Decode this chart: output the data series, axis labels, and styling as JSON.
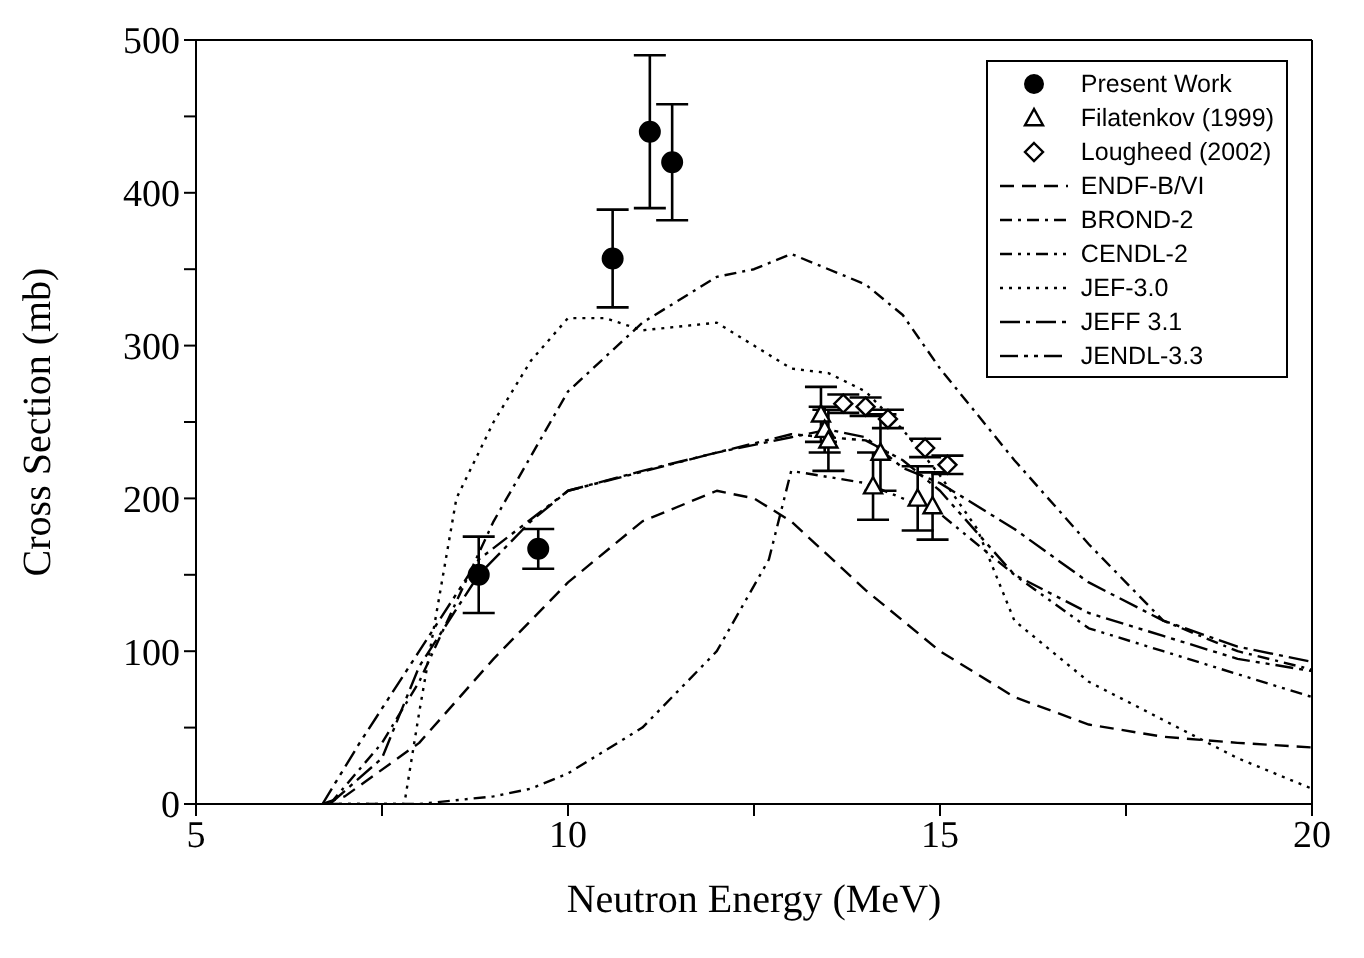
{
  "chart_data": {
    "type": "line",
    "xlabel": "Neutron Energy (MeV)",
    "ylabel": "Cross Section (mb)",
    "xlim": [
      5,
      20
    ],
    "xticks": [
      5,
      {
        "value": 7.5,
        "label": null
      },
      10,
      {
        "value": 12.5,
        "label": null
      },
      15,
      {
        "value": 17.5,
        "label": null
      },
      20
    ],
    "ylim": [
      0,
      500
    ],
    "yticks": [
      0,
      {
        "value": 50,
        "label": null
      },
      100,
      {
        "value": 150,
        "label": null
      },
      200,
      {
        "value": 250,
        "label": null
      },
      300,
      {
        "value": 350,
        "label": null
      },
      400,
      {
        "value": 450,
        "label": null
      },
      500
    ],
    "grid": false,
    "legend": "top right",
    "series": [
      {
        "name": "Present Work",
        "type": "scatter",
        "marker": "circle",
        "color": "#000000",
        "x": [
          8.8,
          9.6,
          10.6,
          11.1,
          11.4
        ],
        "values": [
          150,
          167,
          357,
          440,
          420
        ],
        "errors": [
          25,
          13,
          32,
          50,
          38
        ]
      },
      {
        "name": "Filatenkov (1999)",
        "type": "scatter",
        "marker": "triangle",
        "color": "#000000",
        "x": [
          13.4,
          13.45,
          13.5,
          14.1,
          14.2,
          14.7,
          14.9
        ],
        "values": [
          255,
          245,
          238,
          208,
          230,
          200,
          195
        ],
        "errors": [
          18,
          15,
          20,
          22,
          25,
          21,
          22
        ]
      },
      {
        "name": "Lougheed (2002)",
        "type": "scatter",
        "marker": "diamond",
        "color": "#000000",
        "x": [
          13.7,
          14.0,
          14.3,
          14.8,
          15.1
        ],
        "values": [
          262,
          260,
          252,
          233,
          222
        ],
        "errors": [
          6,
          6,
          6,
          6,
          6
        ]
      },
      {
        "name": "ENDF-B/VI",
        "line_style": "dashed",
        "marker": "none",
        "color": "#000000",
        "x": [
          6.7,
          7,
          8,
          9,
          10,
          11,
          12,
          12.5,
          13,
          14,
          15,
          16,
          17,
          18,
          19,
          20
        ],
        "values": [
          0,
          5,
          40,
          95,
          145,
          185,
          205,
          200,
          185,
          140,
          100,
          70,
          52,
          44,
          40,
          37
        ]
      },
      {
        "name": "BROND-2",
        "line_style": "dashdot",
        "marker": "none",
        "color": "#000000",
        "x": [
          6.8,
          7.5,
          8,
          9,
          10,
          11,
          12,
          12.5,
          13,
          14,
          14.5,
          15,
          16,
          17,
          18,
          19,
          20
        ],
        "values": [
          0,
          40,
          80,
          185,
          270,
          315,
          345,
          350,
          360,
          340,
          320,
          285,
          225,
          170,
          120,
          100,
          88
        ]
      },
      {
        "name": "CENDL-2",
        "line_style": "dashdotdot",
        "marker": "none",
        "color": "#000000",
        "x": [
          6.8,
          8,
          9,
          9.5,
          10,
          11,
          12,
          12.7,
          13,
          14,
          15,
          16,
          17,
          18,
          19,
          20
        ],
        "values": [
          0,
          0,
          5,
          10,
          20,
          50,
          100,
          160,
          218,
          210,
          190,
          150,
          115,
          100,
          85,
          70
        ]
      },
      {
        "name": "JEF-3.0",
        "line_style": "dotted",
        "marker": "none",
        "color": "#000000",
        "x": [
          6.8,
          7.8,
          8,
          8.5,
          9,
          9.5,
          10,
          10.5,
          11,
          12,
          13,
          13.5,
          14,
          14.5,
          15,
          15.5,
          16,
          17,
          18,
          19,
          20
        ],
        "values": [
          0,
          0,
          60,
          200,
          250,
          290,
          318,
          318,
          310,
          315,
          285,
          282,
          270,
          245,
          215,
          180,
          120,
          80,
          55,
          30,
          10
        ]
      },
      {
        "name": "JEFF 3.1",
        "line_style": "longdashdot",
        "marker": "none",
        "color": "#000000",
        "x": [
          6.8,
          7.5,
          8,
          8.8,
          9.5,
          10,
          11,
          12,
          13,
          13.5,
          14,
          14.5,
          15,
          16,
          17,
          18,
          19,
          20
        ],
        "values": [
          0,
          30,
          90,
          150,
          185,
          205,
          218,
          230,
          240,
          245,
          240,
          220,
          210,
          180,
          145,
          120,
          103,
          93
        ]
      },
      {
        "name": "JENDL-3.3",
        "line_style": "dashdotlong",
        "marker": "none",
        "color": "#000000",
        "x": [
          6.7,
          7.2,
          8,
          8.8,
          10,
          12,
          13,
          13.5,
          14,
          14.5,
          15,
          16,
          17,
          18,
          19,
          20
        ],
        "values": [
          0,
          40,
          100,
          160,
          205,
          230,
          242,
          240,
          238,
          225,
          205,
          150,
          125,
          110,
          95,
          87
        ]
      }
    ]
  }
}
